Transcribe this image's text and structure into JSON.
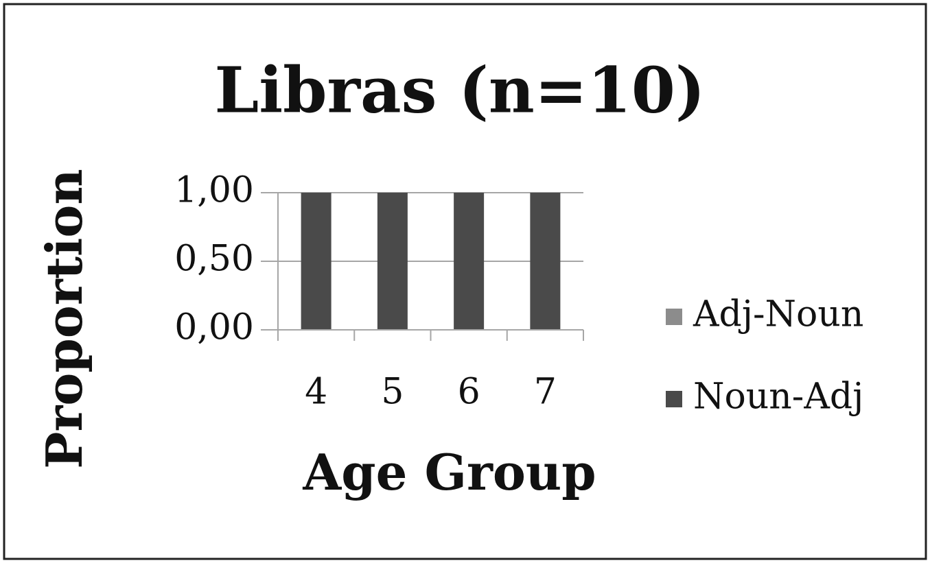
{
  "chart_data": {
    "type": "bar",
    "stacked": true,
    "title": "Libras (n=10)",
    "x_label": "Age Group",
    "y_label": "Proportion",
    "categories": [
      "4",
      "5",
      "6",
      "7"
    ],
    "series": [
      {
        "name": "Adj-Noun",
        "color": "#8c8c8c",
        "values": [
          0,
          0,
          0,
          0
        ]
      },
      {
        "name": "Noun-Adj",
        "color": "#4a4a4a",
        "values": [
          1,
          1,
          1,
          1
        ]
      }
    ],
    "ylim": [
      0,
      1
    ],
    "yticks": [
      {
        "value": 0,
        "label": "0,00"
      },
      {
        "value": 0.5,
        "label": "0,50"
      },
      {
        "value": 1,
        "label": "1,00"
      }
    ],
    "grid": true,
    "legend": "right"
  }
}
